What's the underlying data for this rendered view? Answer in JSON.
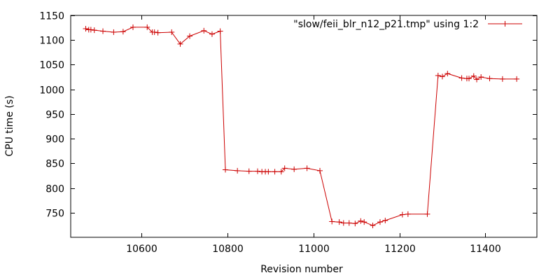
{
  "chart_data": {
    "type": "line",
    "title": "",
    "xlabel": "Revision number",
    "ylabel": "CPU time (s)",
    "xlim": [
      10435,
      11520
    ],
    "ylim": [
      700,
      1150
    ],
    "x_ticks": [
      10600,
      10800,
      11000,
      11200,
      11400
    ],
    "y_ticks": [
      750,
      800,
      850,
      900,
      950,
      1000,
      1050,
      1100,
      1150
    ],
    "grid": false,
    "legend_position": "top-right",
    "series_color": "#cc0000",
    "series": [
      {
        "name": "\"slow/feii_blr_n12_p21.tmp\" using 1:2",
        "points": [
          [
            10470,
            1123
          ],
          [
            10477,
            1121
          ],
          [
            10482,
            1121
          ],
          [
            10490,
            1120
          ],
          [
            10510,
            1118
          ],
          [
            10535,
            1116
          ],
          [
            10557,
            1117
          ],
          [
            10580,
            1126
          ],
          [
            10613,
            1126
          ],
          [
            10625,
            1116
          ],
          [
            10630,
            1116
          ],
          [
            10638,
            1115
          ],
          [
            10670,
            1116
          ],
          [
            10690,
            1092
          ],
          [
            10712,
            1108
          ],
          [
            10745,
            1119
          ],
          [
            10764,
            1112
          ],
          [
            10783,
            1118
          ],
          [
            10795,
            837
          ],
          [
            10823,
            835
          ],
          [
            10850,
            834
          ],
          [
            10870,
            834
          ],
          [
            10880,
            833
          ],
          [
            10888,
            833
          ],
          [
            10895,
            833
          ],
          [
            10910,
            833
          ],
          [
            10925,
            833
          ],
          [
            10933,
            840
          ],
          [
            10955,
            838
          ],
          [
            10985,
            840
          ],
          [
            11015,
            835
          ],
          [
            11043,
            732
          ],
          [
            11060,
            731
          ],
          [
            11070,
            729
          ],
          [
            11083,
            729
          ],
          [
            11097,
            728
          ],
          [
            11110,
            733
          ],
          [
            11118,
            731
          ],
          [
            11138,
            724
          ],
          [
            11155,
            731
          ],
          [
            11167,
            734
          ],
          [
            11207,
            746
          ],
          [
            11220,
            747
          ],
          [
            11265,
            747
          ],
          [
            11290,
            1028
          ],
          [
            11300,
            1026
          ],
          [
            11312,
            1032
          ],
          [
            11345,
            1023
          ],
          [
            11357,
            1022
          ],
          [
            11362,
            1022
          ],
          [
            11373,
            1027
          ],
          [
            11380,
            1020
          ],
          [
            11390,
            1025
          ],
          [
            11410,
            1022
          ],
          [
            11440,
            1021
          ],
          [
            11473,
            1021
          ]
        ]
      }
    ]
  }
}
